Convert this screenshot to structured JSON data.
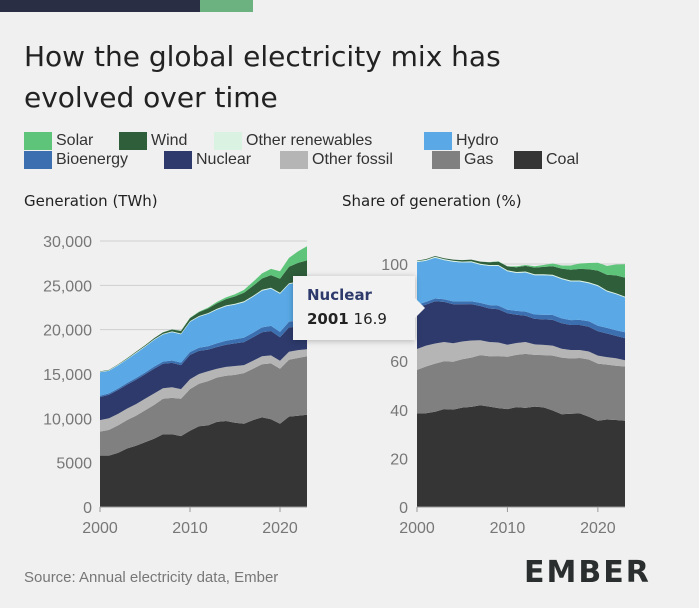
{
  "title_line1": "How the global electricity mix has",
  "title_line2": "evolved over time",
  "legend": [
    {
      "key": "solar",
      "label": "Solar",
      "color": "#5ec47a"
    },
    {
      "key": "wind",
      "label": "Wind",
      "color": "#2f5e3b"
    },
    {
      "key": "other_renewables",
      "label": "Other renewables",
      "color": "#d9f2e2"
    },
    {
      "key": "hydro",
      "label": "Hydro",
      "color": "#5aa9e6"
    },
    {
      "key": "bioenergy",
      "label": "Bioenergy",
      "color": "#3b6fb0"
    },
    {
      "key": "nuclear",
      "label": "Nuclear",
      "color": "#2d3a6b"
    },
    {
      "key": "other_fossil",
      "label": "Other fossil",
      "color": "#b5b5b5"
    },
    {
      "key": "gas",
      "label": "Gas",
      "color": "#808080"
    },
    {
      "key": "coal",
      "label": "Coal",
      "color": "#353535"
    }
  ],
  "left_subtitle": "Generation (TWh)",
  "right_subtitle": "Share of generation (%)",
  "source": "Source: Annual electricity data, Ember",
  "logo": "EMBER",
  "tooltip": {
    "series": "Nuclear",
    "year": "2001",
    "value": "16.9"
  },
  "chart_data": [
    {
      "type": "area",
      "stacked": true,
      "title": "Generation (TWh)",
      "xlim": [
        2000,
        2023
      ],
      "ylim": [
        0,
        30000
      ],
      "xticks": [
        "2000",
        "2010",
        "2020"
      ],
      "yticks": [
        "0",
        "5000",
        "10,000",
        "15,000",
        "20,000",
        "25,000",
        "30,000"
      ],
      "x": [
        2000,
        2001,
        2002,
        2003,
        2004,
        2005,
        2006,
        2007,
        2008,
        2009,
        2010,
        2011,
        2012,
        2013,
        2014,
        2015,
        2016,
        2017,
        2018,
        2019,
        2020,
        2021,
        2022,
        2023
      ],
      "series": [
        {
          "name": "Coal",
          "values": [
            5800,
            5800,
            6100,
            6600,
            6900,
            7300,
            7700,
            8200,
            8200,
            8000,
            8600,
            9100,
            9200,
            9600,
            9700,
            9500,
            9400,
            9800,
            10100,
            9900,
            9400,
            10200,
            10300,
            10400
          ]
        },
        {
          "name": "Gas",
          "values": [
            2700,
            2900,
            3100,
            3200,
            3400,
            3600,
            3800,
            4000,
            4100,
            4200,
            4700,
            4800,
            5000,
            5000,
            5100,
            5400,
            5700,
            5800,
            6000,
            6300,
            6200,
            6400,
            6500,
            6600
          ]
        },
        {
          "name": "Other fossil",
          "values": [
            1300,
            1300,
            1300,
            1300,
            1300,
            1300,
            1300,
            1200,
            1200,
            1100,
            1100,
            1100,
            1100,
            1000,
            1000,
            1000,
            900,
            900,
            900,
            900,
            900,
            900,
            900,
            800
          ]
        },
        {
          "name": "Nuclear",
          "values": [
            2600,
            2650,
            2700,
            2700,
            2750,
            2750,
            2800,
            2750,
            2750,
            2700,
            2750,
            2600,
            2450,
            2450,
            2500,
            2550,
            2600,
            2640,
            2700,
            2750,
            2650,
            2750,
            2650,
            2700
          ]
        },
        {
          "name": "Bioenergy",
          "values": [
            150,
            160,
            170,
            180,
            200,
            210,
            230,
            250,
            270,
            290,
            330,
            350,
            380,
            410,
            440,
            480,
            500,
            520,
            550,
            580,
            600,
            640,
            670,
            700
          ]
        },
        {
          "name": "Hydro",
          "values": [
            2650,
            2550,
            2600,
            2650,
            2800,
            2900,
            3000,
            3050,
            3200,
            3200,
            3400,
            3500,
            3650,
            3800,
            3900,
            3900,
            4000,
            4050,
            4150,
            4200,
            4300,
            4250,
            4300,
            4200
          ]
        },
        {
          "name": "Other renewables",
          "values": [
            60,
            60,
            65,
            65,
            70,
            70,
            75,
            75,
            80,
            80,
            90,
            90,
            90,
            90,
            95,
            95,
            100,
            100,
            100,
            105,
            105,
            105,
            110,
            110
          ]
        },
        {
          "name": "Wind",
          "values": [
            30,
            40,
            50,
            70,
            90,
            100,
            130,
            170,
            220,
            280,
            340,
            440,
            520,
            640,
            710,
            830,
            960,
            1130,
            1270,
            1420,
            1590,
            1850,
            2100,
            2300
          ]
        },
        {
          "name": "Solar",
          "values": [
            1,
            2,
            2,
            3,
            4,
            5,
            6,
            8,
            12,
            20,
            30,
            60,
            100,
            140,
            190,
            250,
            330,
            450,
            580,
            700,
            850,
            1000,
            1300,
            1600
          ]
        }
      ]
    },
    {
      "type": "area",
      "stacked": true,
      "title": "Share of generation (%)",
      "xlim": [
        2000,
        2023
      ],
      "ylim": [
        0,
        100
      ],
      "xticks": [
        "2000",
        "2010",
        "2020"
      ],
      "yticks": [
        "0",
        "20",
        "40",
        "60",
        "80",
        "100"
      ],
      "x": [
        2000,
        2001,
        2002,
        2003,
        2004,
        2005,
        2006,
        2007,
        2008,
        2009,
        2010,
        2011,
        2012,
        2013,
        2014,
        2015,
        2016,
        2017,
        2018,
        2019,
        2020,
        2021,
        2022,
        2023
      ],
      "series": [
        {
          "name": "Coal",
          "values": [
            38.5,
            38.6,
            39.2,
            40.3,
            40.1,
            40.9,
            41.2,
            41.9,
            41.3,
            40.7,
            40.3,
            41.1,
            40.8,
            41.3,
            41.0,
            39.7,
            38.2,
            38.4,
            38.5,
            37.1,
            35.5,
            36.0,
            35.8,
            35.5
          ]
        },
        {
          "name": "Gas",
          "values": [
            17.9,
            19.2,
            19.8,
            19.7,
            19.7,
            19.9,
            20.3,
            20.6,
            20.7,
            21.4,
            21.5,
            21.5,
            22.2,
            21.3,
            21.5,
            22.6,
            23.3,
            22.7,
            22.8,
            23.6,
            23.5,
            22.6,
            22.3,
            22.3
          ]
        },
        {
          "name": "Other fossil",
          "values": [
            8.6,
            8.6,
            8.3,
            7.9,
            7.6,
            7.3,
            7.0,
            6.1,
            5.9,
            5.6,
            5.0,
            4.9,
            4.9,
            4.3,
            4.2,
            4.1,
            3.6,
            3.5,
            3.3,
            3.3,
            3.3,
            3.1,
            3.1,
            2.6
          ]
        },
        {
          "name": "Nuclear",
          "values": [
            17.2,
            16.9,
            17.4,
            16.5,
            16.0,
            15.3,
            15.0,
            14.1,
            13.8,
            13.7,
            12.9,
            11.6,
            10.8,
            10.5,
            10.5,
            10.6,
            10.5,
            10.3,
            10.3,
            10.2,
            10.0,
            9.7,
            9.2,
            9.1
          ]
        },
        {
          "name": "Bioenergy",
          "values": [
            1.0,
            1.1,
            1.1,
            1.1,
            1.2,
            1.2,
            1.2,
            1.3,
            1.4,
            1.5,
            1.5,
            1.6,
            1.7,
            1.8,
            1.9,
            2.0,
            2.0,
            2.0,
            2.1,
            2.2,
            2.3,
            2.3,
            2.3,
            2.4
          ]
        },
        {
          "name": "Hydro",
          "values": [
            17.6,
            16.9,
            16.8,
            16.1,
            16.3,
            16.0,
            16.0,
            15.7,
            16.1,
            16.3,
            15.8,
            15.6,
            16.1,
            16.2,
            16.3,
            16.2,
            16.2,
            15.9,
            15.8,
            15.7,
            16.3,
            15.0,
            14.9,
            14.3
          ]
        },
        {
          "name": "Other renewables",
          "values": [
            0.4,
            0.4,
            0.4,
            0.4,
            0.4,
            0.4,
            0.4,
            0.4,
            0.4,
            0.4,
            0.4,
            0.4,
            0.4,
            0.4,
            0.4,
            0.4,
            0.4,
            0.4,
            0.4,
            0.4,
            0.4,
            0.4,
            0.4,
            0.4
          ]
        },
        {
          "name": "Wind",
          "values": [
            0.2,
            0.3,
            0.3,
            0.4,
            0.5,
            0.6,
            0.7,
            0.9,
            1.1,
            1.4,
            1.6,
            2.0,
            2.3,
            2.7,
            3.0,
            3.5,
            3.9,
            4.4,
            4.8,
            5.3,
            6.0,
            6.5,
            7.3,
            7.8
          ]
        },
        {
          "name": "Solar",
          "values": [
            0.0,
            0.0,
            0.0,
            0.0,
            0.0,
            0.0,
            0.0,
            0.0,
            0.1,
            0.1,
            0.1,
            0.3,
            0.4,
            0.6,
            0.8,
            1.1,
            1.3,
            1.8,
            2.2,
            2.6,
            3.2,
            3.6,
            4.5,
            5.5
          ]
        }
      ]
    }
  ]
}
